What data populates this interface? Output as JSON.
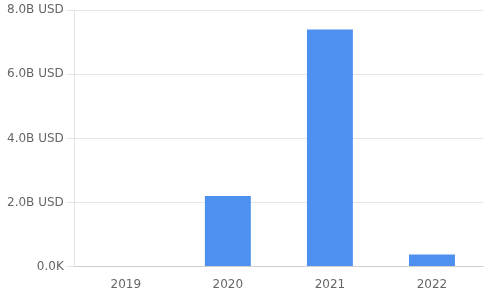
{
  "chart_data": {
    "type": "bar",
    "categories": [
      "2019",
      "2020",
      "2021",
      "2022"
    ],
    "values": [
      0,
      2.2,
      7.4,
      0.38
    ],
    "color": "#4d90f0",
    "ylim": [
      0,
      8.0
    ],
    "yticks": [
      {
        "value": 0,
        "label": "0.0K"
      },
      {
        "value": 2.0,
        "label": "2.0B USD"
      },
      {
        "value": 4.0,
        "label": "4.0B USD"
      },
      {
        "value": 6.0,
        "label": "6.0B USD"
      },
      {
        "value": 8.0,
        "label": "8.0B USD"
      }
    ],
    "grid": true
  }
}
